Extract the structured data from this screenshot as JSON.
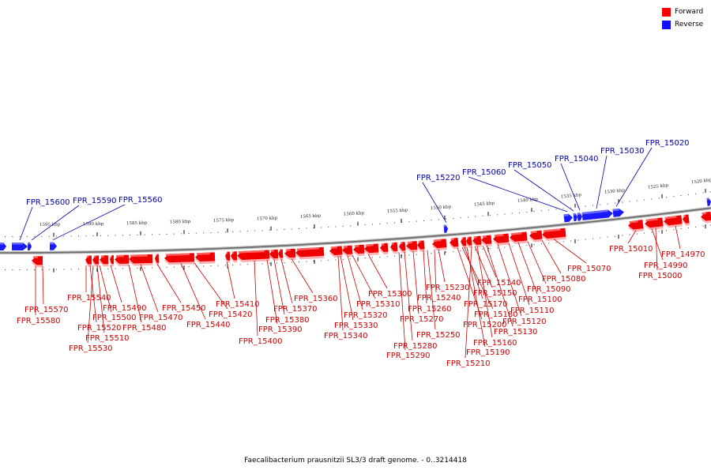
{
  "legend": {
    "forward_label": "Forward",
    "reverse_label": "Reverse",
    "forward_color": "#ff0000",
    "reverse_color": "#1010ff"
  },
  "caption": "Faecalibacterium prausnitzii SL3/3 draft genome. - 0..3214418",
  "colors": {
    "forward": "#ee0000",
    "forward_shadow": "#ffb0b0",
    "reverse": "#1a1aff",
    "backbone": "#888888",
    "forward_label": "#cc0000",
    "reverse_label": "#0000aa"
  },
  "scale": {
    "unit": "kbp",
    "ticks": [
      {
        "kbp": 1595,
        "label": "1595 kbp"
      },
      {
        "kbp": 1590,
        "label": "1590 kbp"
      },
      {
        "kbp": 1585,
        "label": "1585 kbp"
      },
      {
        "kbp": 1580,
        "label": "1580 kbp"
      },
      {
        "kbp": 1575,
        "label": "1575 kbp"
      },
      {
        "kbp": 1570,
        "label": "1570 kbp"
      },
      {
        "kbp": 1565,
        "label": "1565 kbp"
      },
      {
        "kbp": 1560,
        "label": "1560 kbp"
      },
      {
        "kbp": 1555,
        "label": "1555 kbp"
      },
      {
        "kbp": 1550,
        "label": "1550 kbp"
      },
      {
        "kbp": 1545,
        "label": "1545 kbp"
      },
      {
        "kbp": 1540,
        "label": "1540 kbp"
      },
      {
        "kbp": 1535,
        "label": "1535 kbp"
      },
      {
        "kbp": 1530,
        "label": "1530 kbp"
      },
      {
        "kbp": 1525,
        "label": "1525 kbp"
      },
      {
        "kbp": 1520,
        "label": "1520 kbp"
      }
    ]
  },
  "reverse_genes": [
    {
      "name": "FPR_15600"
    },
    {
      "name": "FPR_15590"
    },
    {
      "name": "FPR_15560"
    },
    {
      "name": "FPR_15220"
    },
    {
      "name": "FPR_15060"
    },
    {
      "name": "FPR_15050"
    },
    {
      "name": "FPR_15040"
    },
    {
      "name": "FPR_15030"
    },
    {
      "name": "FPR_15020"
    }
  ],
  "forward_genes": [
    {
      "name": "FPR_15580"
    },
    {
      "name": "FPR_15570"
    },
    {
      "name": "FPR_15540"
    },
    {
      "name": "FPR_15530"
    },
    {
      "name": "FPR_15520"
    },
    {
      "name": "FPR_15510"
    },
    {
      "name": "FPR_15500"
    },
    {
      "name": "FPR_15490"
    },
    {
      "name": "FPR_15480"
    },
    {
      "name": "FPR_15470"
    },
    {
      "name": "FPR_15450"
    },
    {
      "name": "FPR_15440"
    },
    {
      "name": "FPR_15420"
    },
    {
      "name": "FPR_15410"
    },
    {
      "name": "FPR_15400"
    },
    {
      "name": "FPR_15390"
    },
    {
      "name": "FPR_15380"
    },
    {
      "name": "FPR_15370"
    },
    {
      "name": "FPR_15360"
    },
    {
      "name": "FPR_15340"
    },
    {
      "name": "FPR_15330"
    },
    {
      "name": "FPR_15320"
    },
    {
      "name": "FPR_15310"
    },
    {
      "name": "FPR_15300"
    },
    {
      "name": "FPR_15290"
    },
    {
      "name": "FPR_15280"
    },
    {
      "name": "FPR_15270"
    },
    {
      "name": "FPR_15260"
    },
    {
      "name": "FPR_15250"
    },
    {
      "name": "FPR_15240"
    },
    {
      "name": "FPR_15230"
    },
    {
      "name": "FPR_15210"
    },
    {
      "name": "FPR_15200"
    },
    {
      "name": "FPR_15190"
    },
    {
      "name": "FPR_15180"
    },
    {
      "name": "FPR_15170"
    },
    {
      "name": "FPR_15160"
    },
    {
      "name": "FPR_15150"
    },
    {
      "name": "FPR_15140"
    },
    {
      "name": "FPR_15130"
    },
    {
      "name": "FPR_15120"
    },
    {
      "name": "FPR_15110"
    },
    {
      "name": "FPR_15100"
    },
    {
      "name": "FPR_15090"
    },
    {
      "name": "FPR_15080"
    },
    {
      "name": "FPR_15070"
    },
    {
      "name": "FPR_15010"
    },
    {
      "name": "FPR_15000"
    },
    {
      "name": "FPR_14990"
    },
    {
      "name": "FPR_14970"
    }
  ]
}
